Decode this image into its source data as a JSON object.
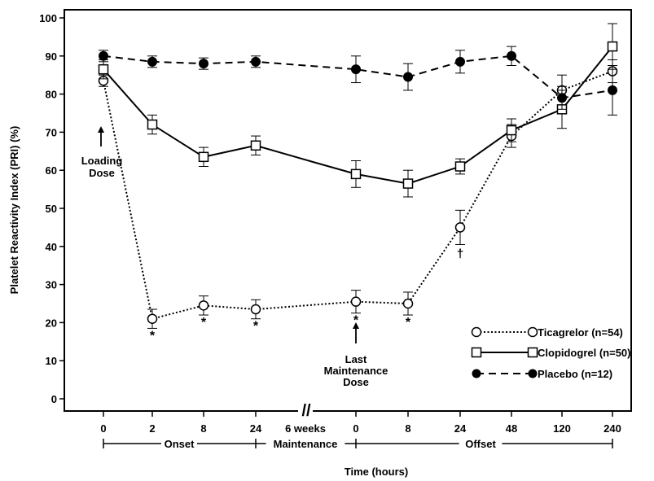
{
  "chart_data": {
    "type": "line",
    "xlabel": "Time (hours)",
    "ylabel": "Platelet Reactivity Index (PRI) (%)",
    "ylim": [
      0,
      100
    ],
    "yticks": [
      "0",
      "10",
      "20",
      "30",
      "40",
      "50",
      "60",
      "70",
      "80",
      "90",
      "100"
    ],
    "categories": [
      "0",
      "2",
      "8",
      "24",
      "6 weeks",
      "0",
      "8",
      "24",
      "48",
      "120",
      "240"
    ],
    "phases": [
      "Onset",
      "Maintenance",
      "Offset"
    ],
    "grid": false,
    "legend_position": "bottom-right",
    "series": [
      {
        "name": "Ticagrelor (n=54)",
        "marker": "open-circle",
        "line": "dotted",
        "values": [
          83.5,
          21,
          24.5,
          23.5,
          null,
          25.5,
          25,
          45,
          69,
          81,
          86
        ],
        "error": [
          1.5,
          2.5,
          2.5,
          2.5,
          null,
          3,
          3,
          4.5,
          3,
          4,
          3
        ]
      },
      {
        "name": "Clopidogrel (n=50)",
        "marker": "open-square",
        "line": "solid",
        "values": [
          86.5,
          72,
          63.5,
          66.5,
          null,
          59,
          56.5,
          61,
          70.5,
          76,
          92.5
        ],
        "error": [
          2.5,
          2.5,
          2.5,
          2.5,
          null,
          3.5,
          3.5,
          2,
          3,
          5,
          6
        ]
      },
      {
        "name": "Placebo (n=12)",
        "marker": "filled-circle",
        "line": "dashed",
        "values": [
          90,
          88.5,
          88,
          88.5,
          null,
          86.5,
          84.5,
          88.5,
          90,
          79,
          81
        ],
        "error": [
          1.5,
          1.5,
          1.5,
          1.5,
          null,
          3.5,
          3.5,
          3,
          2.5,
          3,
          6.5
        ]
      }
    ],
    "annotations": {
      "loading_dose": "Loading\nDose",
      "last_maintenance": "Last\nMaintenance\nDose",
      "asterisk": "*",
      "dagger": "†",
      "break_mark": "//"
    },
    "colors": {
      "ink": "#000000",
      "background": "#ffffff"
    }
  }
}
